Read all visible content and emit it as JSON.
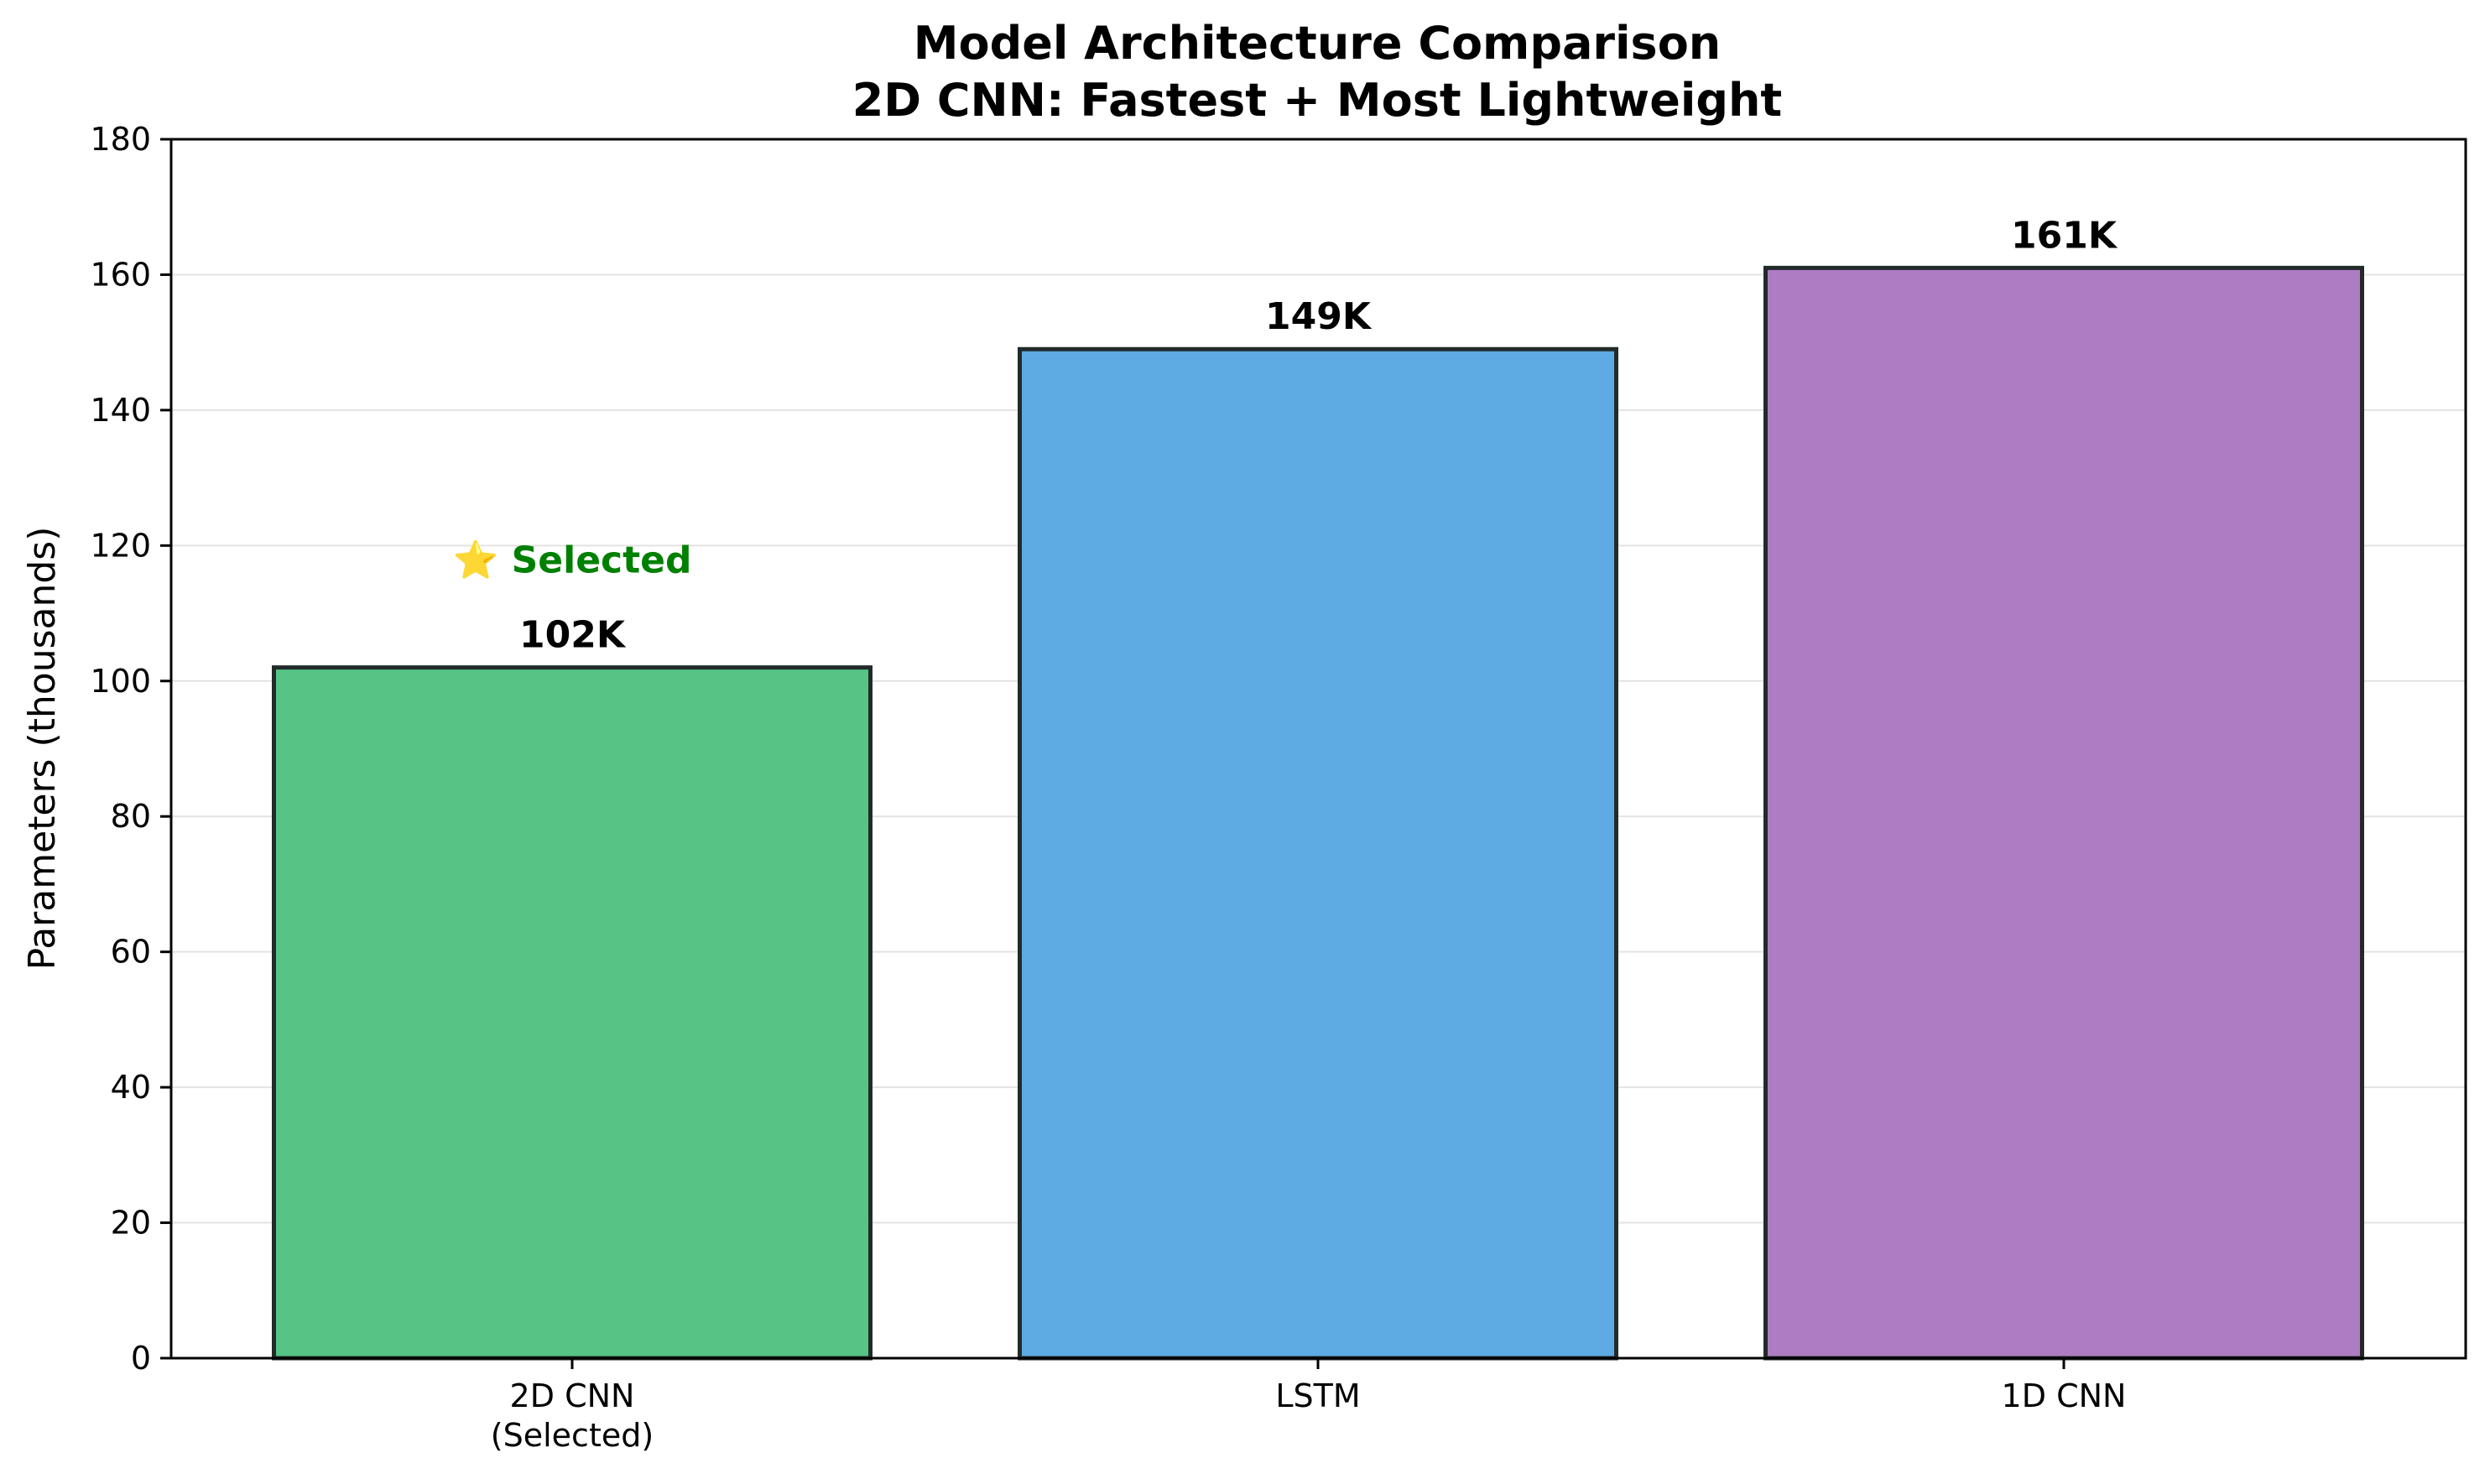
{
  "chart_data": {
    "type": "bar",
    "title_lines": [
      "Model Architecture Comparison",
      "2D CNN: Fastest + Most Lightweight"
    ],
    "xlabel": "",
    "ylabel": "Parameters (thousands)",
    "ylim": [
      0,
      180
    ],
    "yticks": [
      0,
      20,
      40,
      60,
      80,
      100,
      120,
      140,
      160,
      180
    ],
    "grid": "horizontal",
    "categories": [
      {
        "label_lines": [
          "2D CNN",
          "(Selected)"
        ]
      },
      {
        "label_lines": [
          "LSTM"
        ]
      },
      {
        "label_lines": [
          "1D CNN"
        ]
      }
    ],
    "values": [
      102,
      149,
      161
    ],
    "value_labels": [
      "102K",
      "149K",
      "161K"
    ],
    "bar_colors": [
      "#55c485",
      "#5dabe2",
      "#ae7cc3"
    ],
    "annotation": {
      "text": "⭐ Selected",
      "category_index": 0,
      "y": 118,
      "color": "#008000"
    }
  }
}
